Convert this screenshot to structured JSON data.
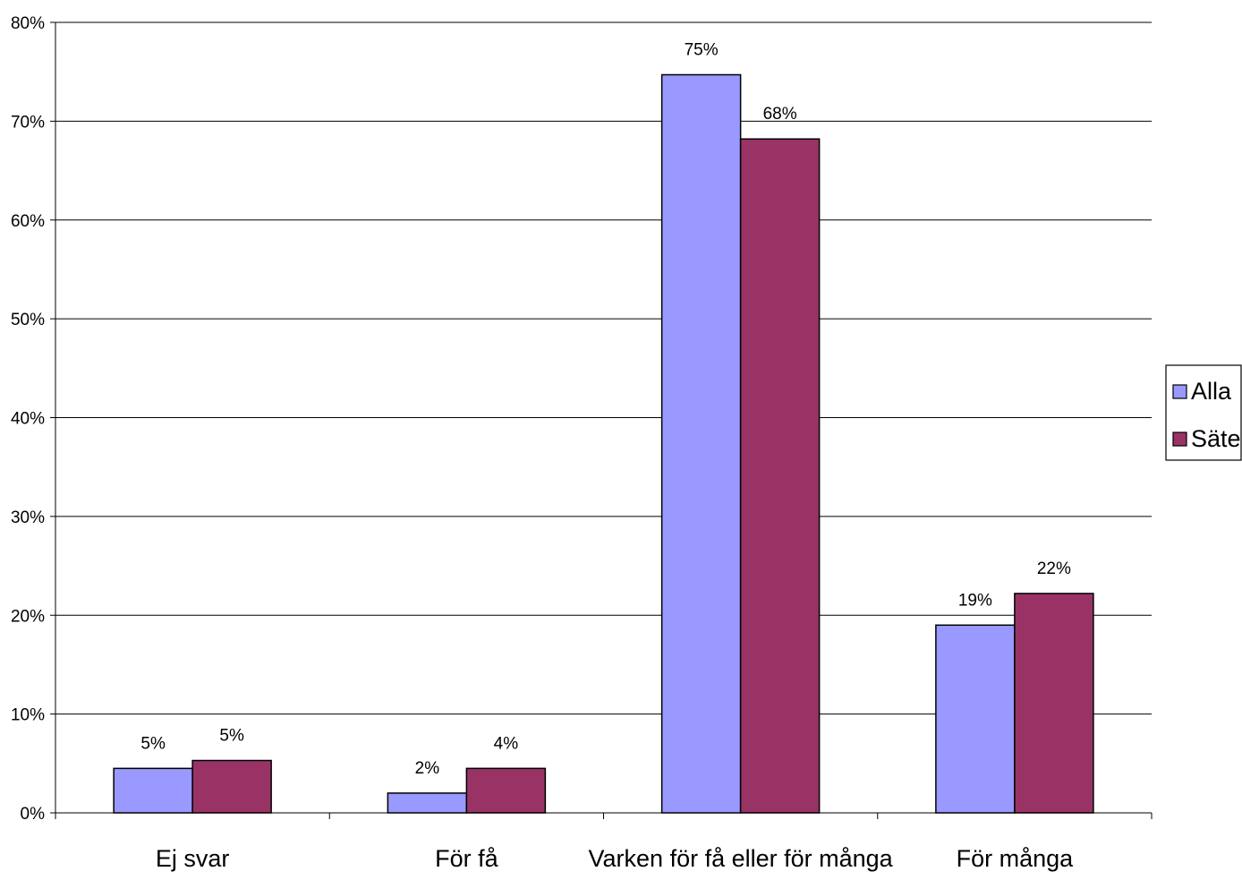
{
  "chart_data": {
    "type": "bar",
    "categories": [
      "Ej svar",
      "För få",
      "Varken för få eller för många",
      "För många"
    ],
    "series": [
      {
        "name": "Alla",
        "values": [
          4.5,
          2.0,
          74.7,
          19.0
        ],
        "labels": [
          "5%",
          "2%",
          "75%",
          "19%"
        ],
        "color": "#9999ff"
      },
      {
        "name": "Säter",
        "values": [
          5.3,
          4.5,
          68.2,
          22.2
        ],
        "labels": [
          "5%",
          "4%",
          "68%",
          "22%"
        ],
        "color": "#993366"
      }
    ],
    "ylim": [
      0,
      80
    ],
    "yticks": [
      0,
      10,
      20,
      30,
      40,
      50,
      60,
      70,
      80
    ],
    "ytick_labels": [
      "0%",
      "10%",
      "20%",
      "30%",
      "40%",
      "50%",
      "60%",
      "70%",
      "80%"
    ],
    "grid": true,
    "legend_position": "right",
    "title": "",
    "xlabel": "",
    "ylabel": ""
  }
}
